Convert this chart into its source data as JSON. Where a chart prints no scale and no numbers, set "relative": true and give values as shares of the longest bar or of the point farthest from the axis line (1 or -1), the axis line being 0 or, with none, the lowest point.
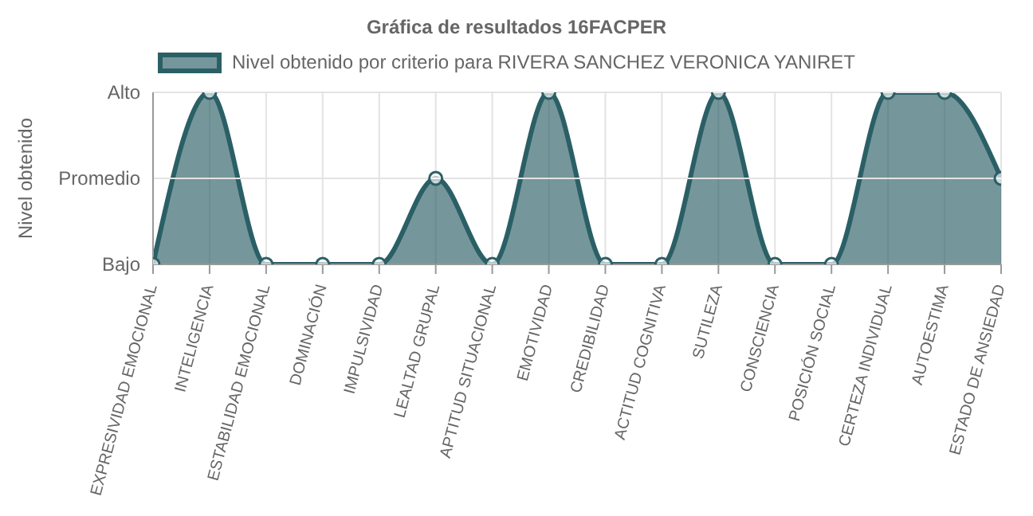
{
  "chart_data": {
    "type": "area",
    "title": "Gráfica de resultados 16FACPER",
    "ylabel": "Nivel obtenido",
    "relative": true,
    "categories": [
      "EXPRESIVIDAD EMOCIONAL",
      "INTELIGENCIA",
      "ESTABILIDAD EMOCIONAL",
      "DOMINACIÓN",
      "IMPULSIVIDAD",
      "LEALTAD GRUPAL",
      "APTITUD SITUACIONAL",
      "EMOTIVIDAD",
      "CREDIBILIDAD",
      "ACTITUD COGNITIVA",
      "SUTILEZA",
      "CONSCIENCIA",
      "POSICIÓN SOCIAL",
      "CERTEZA INDIVIDUAL",
      "AUTOESTIMA",
      "ESTADO DE ANSIEDAD"
    ],
    "series": [
      {
        "name": "Nivel obtenido por criterio para RIVERA SANCHEZ VERONICA YANIRET",
        "color": "#2b5f66",
        "values": [
          0,
          1,
          0,
          0,
          0,
          0.5,
          0,
          1,
          0,
          0,
          1,
          0,
          0,
          1,
          1,
          0.5
        ]
      }
    ],
    "annotations": [
      "Bajo",
      "Promedio",
      "Alto"
    ],
    "grid": true,
    "legend": "top",
    "marker": "circle",
    "line_style": "solid"
  }
}
